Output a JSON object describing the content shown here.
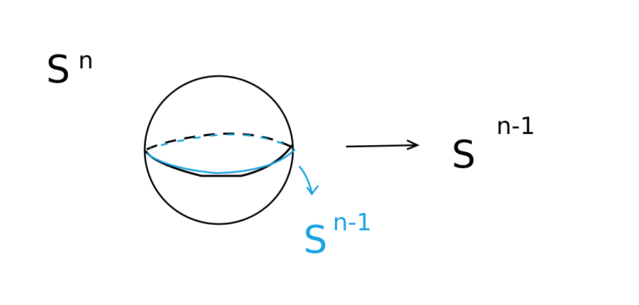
{
  "labels": [
    {
      "base": "S",
      "exponent": "n"
    },
    {
      "base": "S",
      "exponent": "n-1"
    },
    {
      "base": "S",
      "exponent": "n-1"
    }
  ]
}
